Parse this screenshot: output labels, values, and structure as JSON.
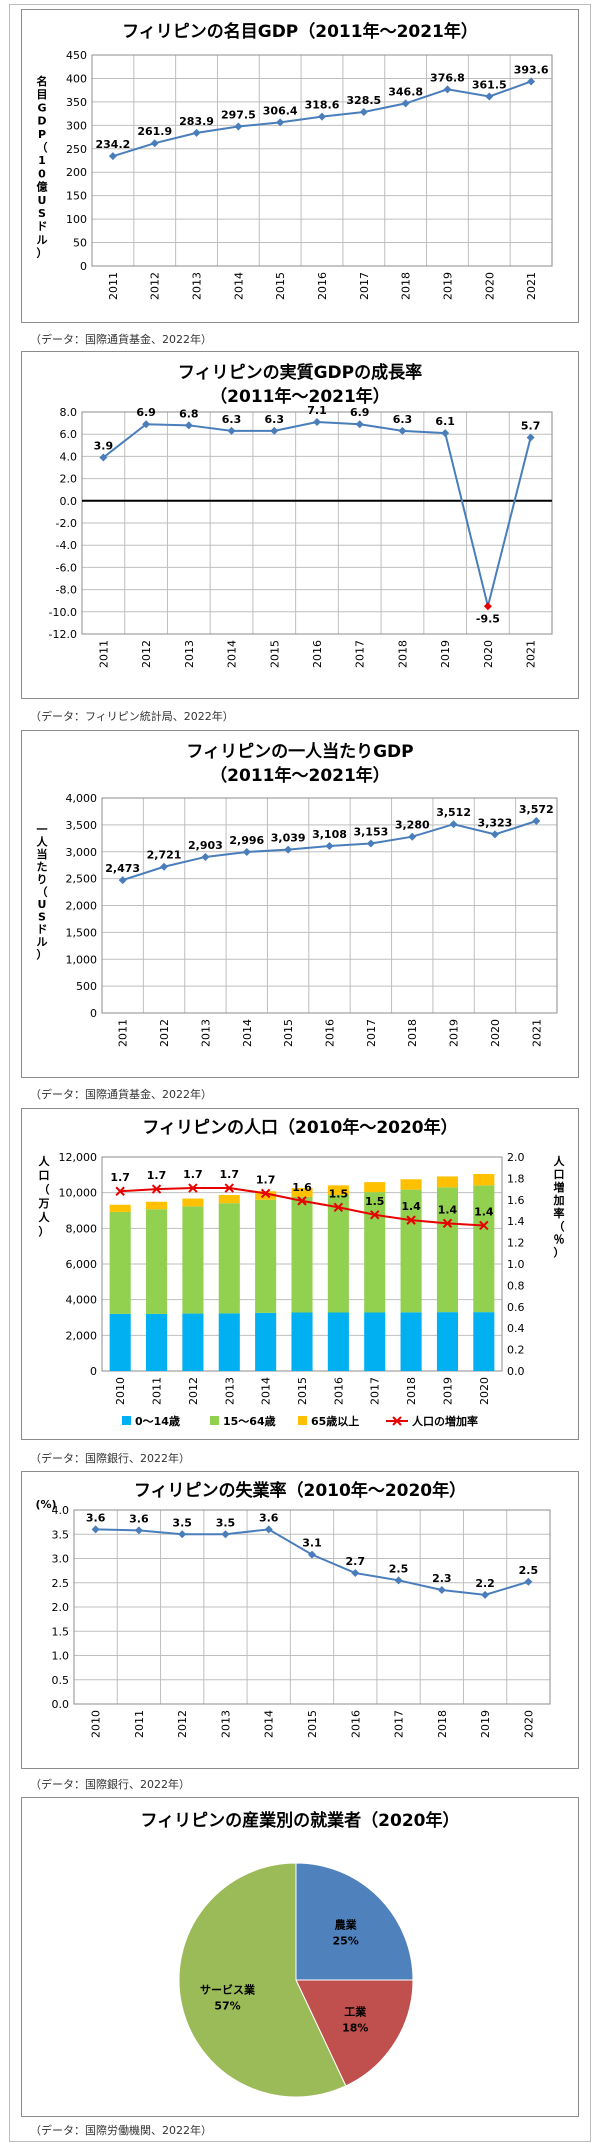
{
  "chart_data": [
    {
      "type": "line",
      "title": "フィリピンの名目GDP（2011年～2021年）",
      "ylabel": "名目GDP（10億USドル）",
      "x": [
        "2011",
        "2012",
        "2013",
        "2014",
        "2015",
        "2016",
        "2017",
        "2018",
        "2019",
        "2020",
        "2021"
      ],
      "series": [
        {
          "values": [
            234.2,
            261.9,
            283.9,
            297.5,
            306.4,
            318.6,
            328.5,
            346.8,
            376.8,
            361.5,
            393.6
          ]
        }
      ],
      "data_labels": [
        "234.2",
        "261.9",
        "283.9",
        "297.5",
        "306.4",
        "318.6",
        "328.5",
        "346.8",
        "376.8",
        "361.5",
        "393.6"
      ],
      "ylim": [
        0,
        450
      ],
      "yticks": [
        "0",
        "50",
        "100",
        "150",
        "200",
        "250",
        "300",
        "350",
        "400",
        "450"
      ],
      "grid": true,
      "source": "（データ：国際通貨基金、2022年）"
    },
    {
      "type": "line",
      "title": "フィリピンの実質GDPの成長率",
      "subtitle": "（2011年～2021年）",
      "x": [
        "2011",
        "2012",
        "2013",
        "2014",
        "2015",
        "2016",
        "2017",
        "2018",
        "2019",
        "2020",
        "2021"
      ],
      "series": [
        {
          "values": [
            3.9,
            6.9,
            6.8,
            6.3,
            6.3,
            7.1,
            6.9,
            6.3,
            6.1,
            -9.5,
            5.7
          ]
        }
      ],
      "data_labels": [
        "3.9",
        "6.9",
        "6.8",
        "6.3",
        "6.3",
        "7.1",
        "6.9",
        "6.3",
        "6.1",
        "-9.5",
        "5.7"
      ],
      "ylim": [
        -12,
        8
      ],
      "yticks": [
        "-12.0",
        "-10.0",
        "-8.0",
        "-6.0",
        "-4.0",
        "-2.0",
        "0.0",
        "2.0",
        "4.0",
        "6.0",
        "8.0"
      ],
      "grid": true,
      "source": "（データ：フィリピン統計局、2022年）"
    },
    {
      "type": "line",
      "title": "フィリピンの一人当たりGDP",
      "subtitle": "（2011年～2021年）",
      "ylabel": "一人当たり（USドル）",
      "x": [
        "2011",
        "2012",
        "2013",
        "2014",
        "2015",
        "2016",
        "2017",
        "2018",
        "2019",
        "2020",
        "2021"
      ],
      "series": [
        {
          "values": [
            2473,
            2721,
            2903,
            2996,
            3039,
            3108,
            3153,
            3280,
            3512,
            3323,
            3572
          ]
        }
      ],
      "data_labels": [
        "2,473",
        "2,721",
        "2,903",
        "2,996",
        "3,039",
        "3,108",
        "3,153",
        "3,280",
        "3,512",
        "3,323",
        "3,572"
      ],
      "ylim": [
        0,
        4000
      ],
      "yticks": [
        "0",
        "500",
        "1,000",
        "1,500",
        "2,000",
        "2,500",
        "3,000",
        "3,500",
        "4,000"
      ],
      "grid": true,
      "source": "（データ：国際通貨基金、2022年）"
    },
    {
      "type": "bar",
      "stacked": true,
      "title": "フィリピンの人口（2010年～2020年）",
      "ylabel": "人口（万人）",
      "y2label": "人口増加率（％）",
      "categories": [
        "2010",
        "2011",
        "2012",
        "2013",
        "2014",
        "2015",
        "2016",
        "2017",
        "2018",
        "2019",
        "2020"
      ],
      "series": [
        {
          "name": "0～14歳",
          "color": "#00b0f0",
          "values": [
            3200,
            3200,
            3220,
            3230,
            3260,
            3280,
            3280,
            3280,
            3290,
            3300,
            3300
          ]
        },
        {
          "name": "15～64歳",
          "color": "#92d050",
          "values": [
            5720,
            5870,
            6010,
            6180,
            6340,
            6480,
            6590,
            6750,
            6880,
            7000,
            7110
          ]
        },
        {
          "name": "65歳以上",
          "color": "#ffc000",
          "values": [
            400,
            420,
            440,
            460,
            480,
            500,
            540,
            560,
            580,
            610,
            640
          ]
        },
        {
          "name": "人口の増加率",
          "color": "#e60000",
          "type": "line",
          "axis": "right",
          "values": [
            1.68,
            1.7,
            1.71,
            1.71,
            1.66,
            1.59,
            1.53,
            1.46,
            1.41,
            1.38,
            1.36
          ]
        }
      ],
      "data_labels": [
        "1.7",
        "1.7",
        "1.7",
        "1.7",
        "1.7",
        "1.6",
        "1.5",
        "1.5",
        "1.4",
        "1.4",
        "1.4"
      ],
      "ylim": [
        0,
        12000
      ],
      "yticks": [
        "0",
        "2,000",
        "4,000",
        "6,000",
        "8,000",
        "10,000",
        "12,000"
      ],
      "y2lim": [
        0,
        2.0
      ],
      "y2ticks": [
        "0.0",
        "0.2",
        "0.4",
        "0.6",
        "0.8",
        "1.0",
        "1.2",
        "1.4",
        "1.6",
        "1.8",
        "2.0"
      ],
      "grid": true,
      "legend": "bottom",
      "source": "（データ：国際銀行、2022年）"
    },
    {
      "type": "line",
      "title": "フィリピンの失業率（2010年～2020年）",
      "ylabel": "(%)",
      "x": [
        "2010",
        "2011",
        "2012",
        "2013",
        "2014",
        "2015",
        "2016",
        "2017",
        "2018",
        "2019",
        "2020"
      ],
      "series": [
        {
          "values": [
            3.6,
            3.58,
            3.5,
            3.5,
            3.6,
            3.08,
            2.7,
            2.55,
            2.35,
            2.25,
            2.52
          ]
        }
      ],
      "data_labels": [
        "3.6",
        "3.6",
        "3.5",
        "3.5",
        "3.6",
        "3.1",
        "2.7",
        "2.5",
        "2.3",
        "2.2",
        "2.5"
      ],
      "ylim": [
        0,
        4.0
      ],
      "yticks": [
        "0.0",
        "0.5",
        "1.0",
        "1.5",
        "2.0",
        "2.5",
        "3.0",
        "3.5",
        "4.0"
      ],
      "grid": true,
      "source": "（データ：国際銀行、2022年）"
    },
    {
      "type": "pie",
      "title": "フィリピンの産業別の就業者（2020年）",
      "slices": [
        {
          "name": "農業",
          "value": 25,
          "label": "25%",
          "color": "#4f81bd"
        },
        {
          "name": "工業",
          "value": 18,
          "label": "18%",
          "color": "#c0504d"
        },
        {
          "name": "サービス業",
          "value": 57,
          "label": "57%",
          "color": "#9bbb59"
        }
      ],
      "source": "（データ：国際労働機関、2022年）"
    }
  ]
}
